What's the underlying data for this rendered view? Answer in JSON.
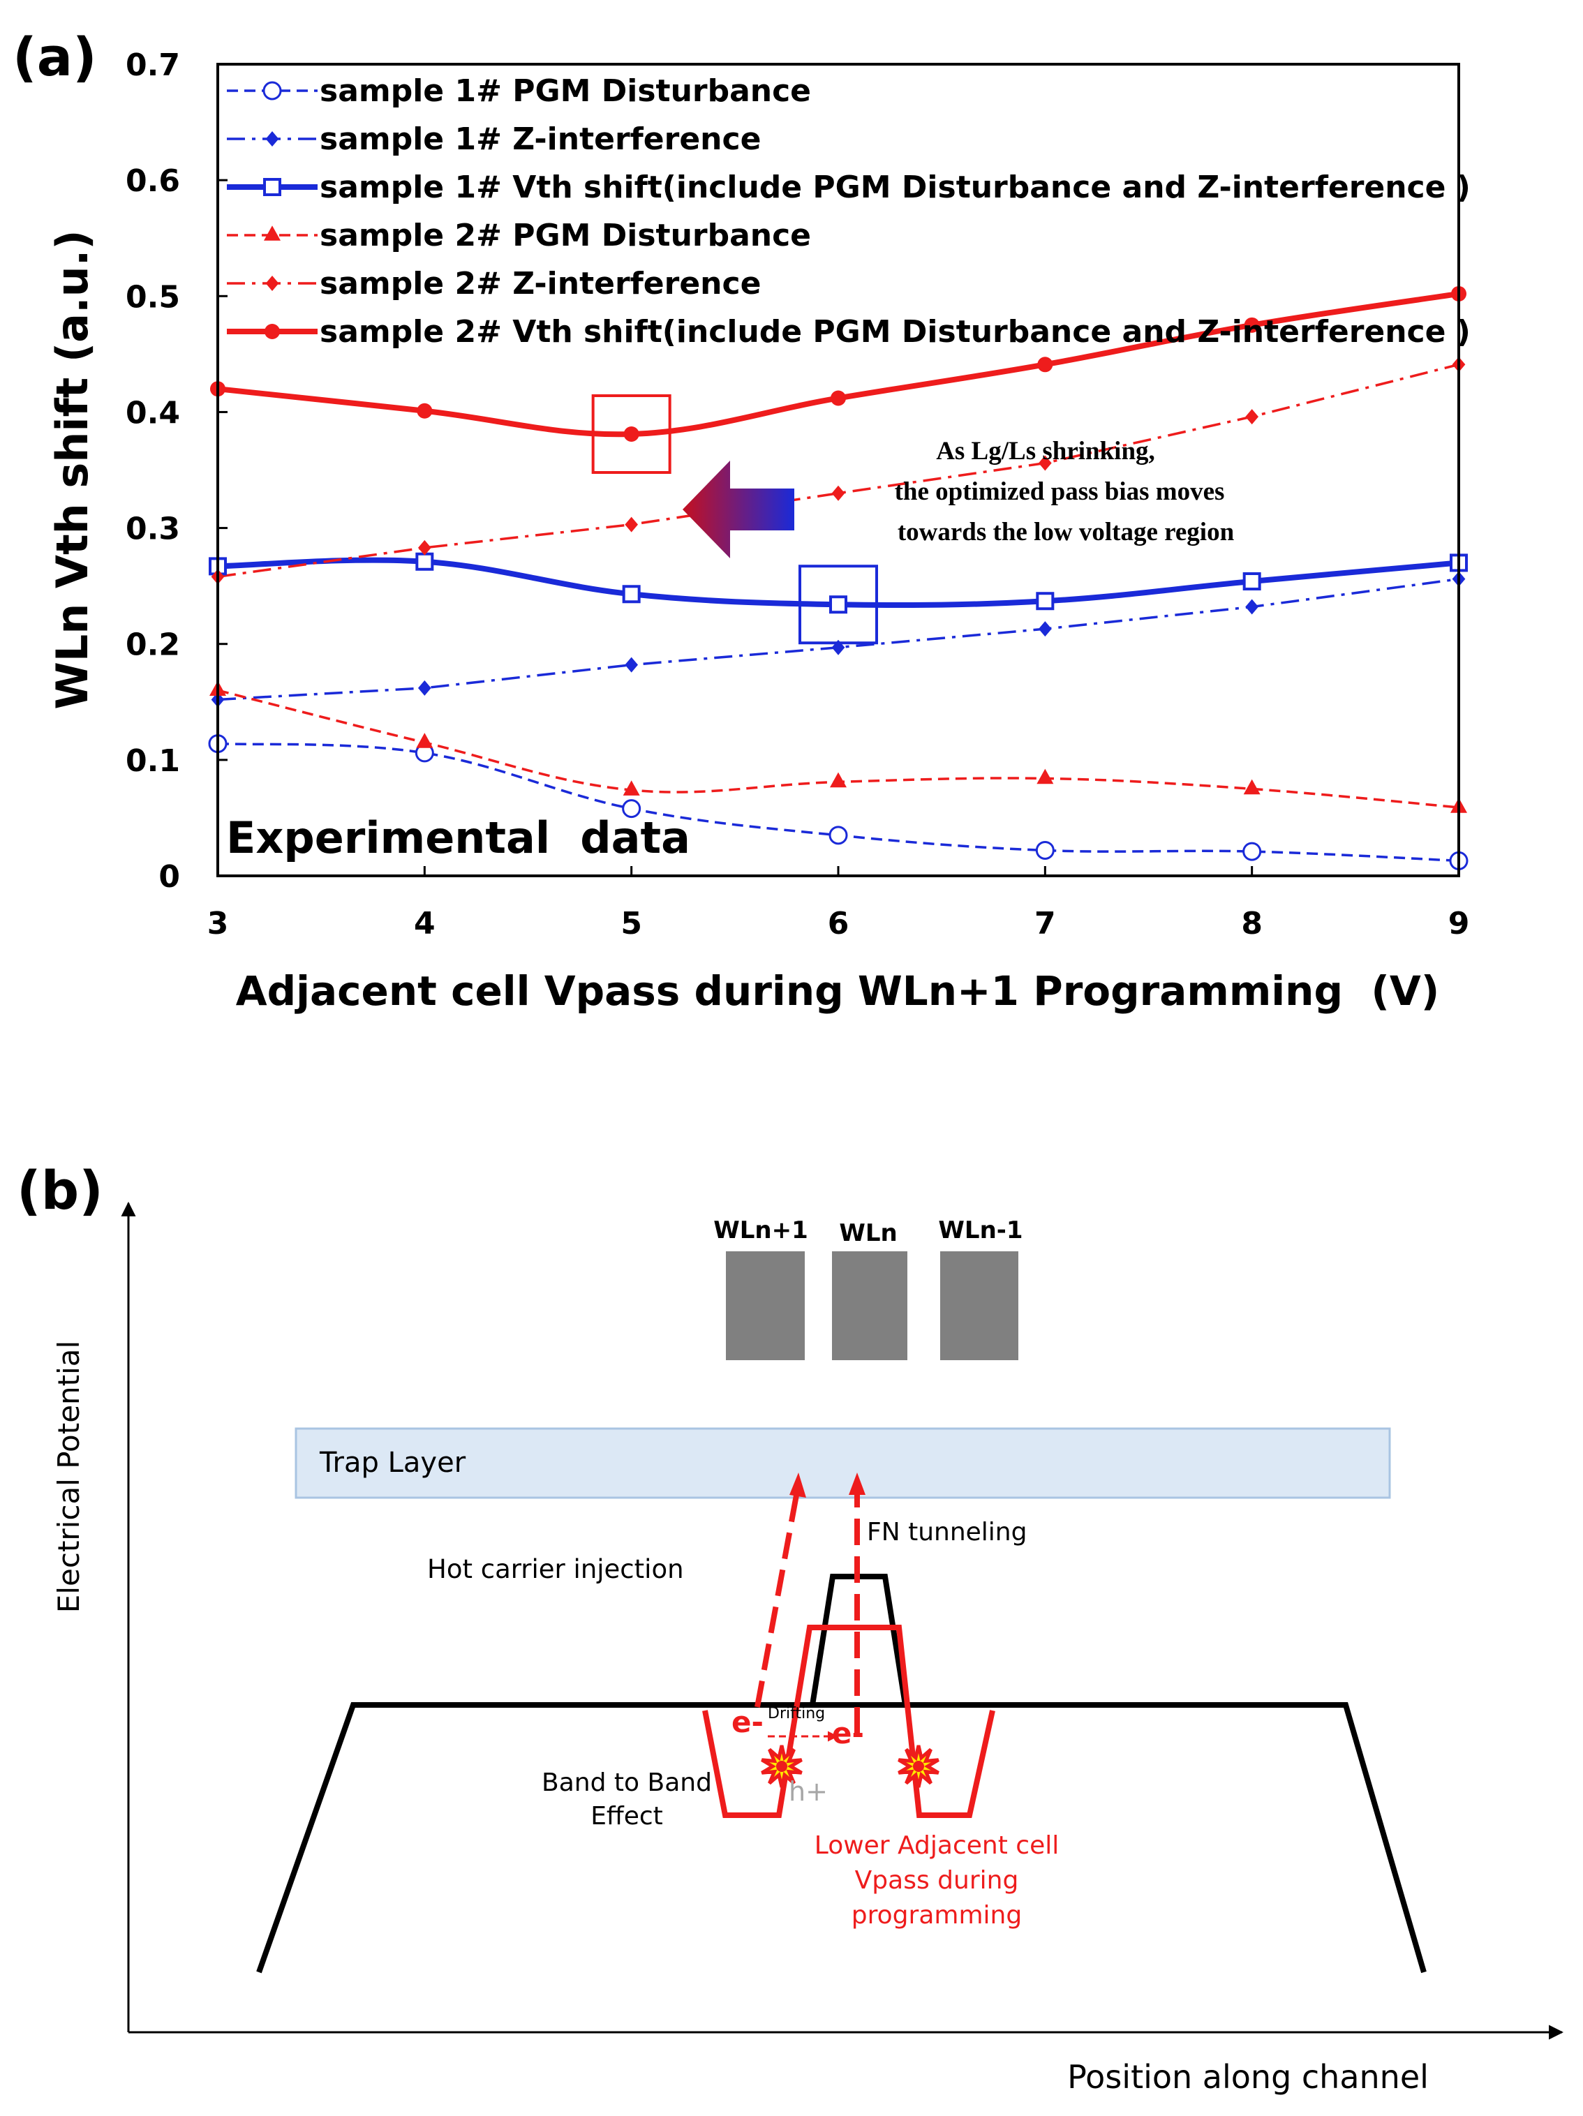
{
  "panel_a": {
    "label": "(a)",
    "annotation": [
      "As Lg/Ls shrinking,",
      "the optimized pass bias moves",
      "towards the low voltage region"
    ],
    "watermark": "Experimental  data",
    "colors": {
      "blue": "#1a2ad8",
      "red": "#ee1c1c",
      "arrow_from": "#1a2ad8",
      "arrow_to": "#c41020"
    },
    "chart_data": {
      "type": "line",
      "xlabel": "Adjacent cell Vpass during WLn+1 Programming  (V)",
      "ylabel": "WLn Vth shift (a.u.)",
      "x": [
        3,
        4,
        5,
        6,
        7,
        8,
        9
      ],
      "xlim": [
        3,
        9
      ],
      "ylim": [
        0,
        0.7
      ],
      "xticks": [
        "3",
        "4",
        "5",
        "6",
        "7",
        "8",
        "9"
      ],
      "yticks": [
        "0",
        "0.1",
        "0.2",
        "0.3",
        "0.4",
        "0.5",
        "0.6",
        "0.7"
      ],
      "legend_position": "top-left",
      "series": [
        {
          "name": "sample 1# PGM Disturbance",
          "color": "#1a2ad8",
          "style": "dashed",
          "marker": "open-circle",
          "values": [
            0.114,
            0.106,
            0.058,
            0.035,
            0.022,
            0.021,
            0.013
          ]
        },
        {
          "name": "sample 1# Z-interference",
          "color": "#1a2ad8",
          "style": "dashdot",
          "marker": "diamond",
          "values": [
            0.152,
            0.162,
            0.182,
            0.197,
            0.213,
            0.232,
            0.256
          ]
        },
        {
          "name": "sample 1# Vth shift(include PGM Disturbance and Z-interference )",
          "color": "#1a2ad8",
          "style": "solid",
          "marker": "open-square",
          "values": [
            0.267,
            0.271,
            0.243,
            0.234,
            0.237,
            0.254,
            0.27
          ]
        },
        {
          "name": "sample 2# PGM Disturbance",
          "color": "#ee1c1c",
          "style": "dashed",
          "marker": "triangle",
          "values": [
            0.16,
            0.115,
            0.074,
            0.081,
            0.084,
            0.075,
            0.059
          ]
        },
        {
          "name": "sample 2# Z-interference",
          "color": "#ee1c1c",
          "style": "dashdot",
          "marker": "diamond",
          "values": [
            0.258,
            0.283,
            0.303,
            0.33,
            0.356,
            0.396,
            0.441
          ]
        },
        {
          "name": "sample 2# Vth shift(include PGM Disturbance and Z-interference )",
          "color": "#ee1c1c",
          "style": "solid",
          "marker": "filled-circle",
          "values": [
            0.42,
            0.401,
            0.381,
            0.412,
            0.441,
            0.475,
            0.502
          ]
        }
      ],
      "highlight_boxes": [
        {
          "series": "sample 2# Vth shift(include PGM Disturbance and Z-interference )",
          "x": 5,
          "color": "#ee1c1c"
        },
        {
          "series": "sample 1# Vth shift(include PGM Disturbance and Z-interference )",
          "x": 6,
          "color": "#1a2ad8"
        }
      ]
    }
  },
  "panel_b": {
    "label": "(b)",
    "y_axis_label": "Electrical Potential",
    "x_axis_label": "Position along channel",
    "wordlines": [
      "WLn+1",
      "WLn",
      "WLn-1"
    ],
    "trap_layer": "Trap Layer",
    "fn_tunneling": "FN tunneling",
    "hot_carrier": "Hot carrier injection",
    "band_to_band": [
      "Band to Band",
      "Effect"
    ],
    "drifting": "Drifting",
    "electron": "e-",
    "hole": "h+",
    "lower_vpass": [
      "Lower Adjacent cell",
      "Vpass during",
      "programming"
    ],
    "colors": {
      "gate": "#808080",
      "trap_fill": "#dce8f5",
      "trap_border": "#a9c4e2",
      "red": "#ee1c1c",
      "black": "#000000",
      "hole": "#a6a6a6"
    }
  }
}
